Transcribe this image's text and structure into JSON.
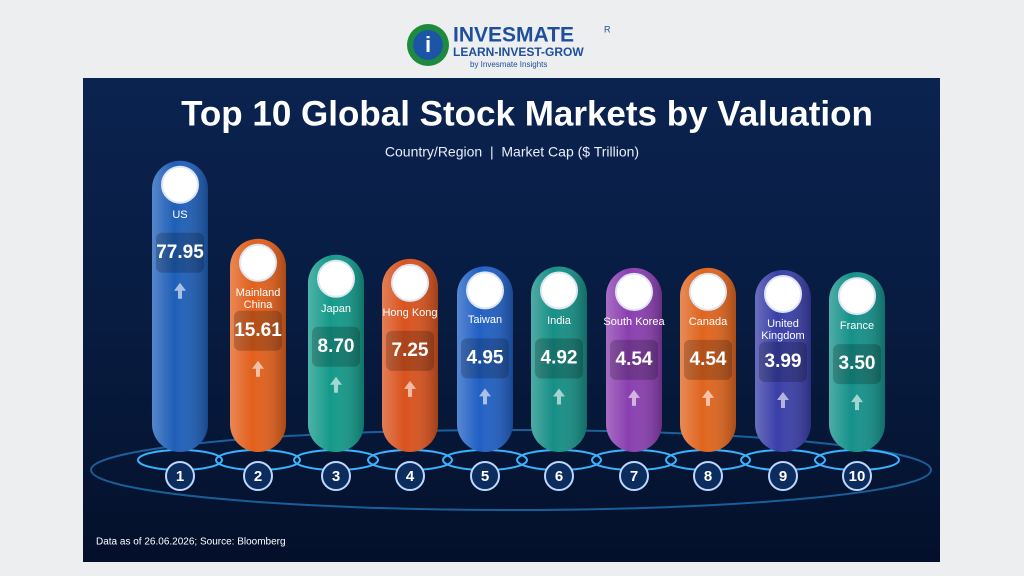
{
  "header": {
    "brand": "INVESMATE",
    "registered": "R",
    "tagline": "LEARN-INVEST-GROW",
    "byline": "by Invesmate Insights"
  },
  "chart_data": {
    "type": "bar",
    "title": "Top 10 Global Stock Markets by Valuation",
    "subtitle": "Country/Region  |  Market Cap ($ Trillion)",
    "categories": [
      "US",
      "Mainland China",
      "Japan",
      "Hong Kong",
      "Taiwan",
      "India",
      "South Korea",
      "Canada",
      "United Kingdom",
      "France"
    ],
    "values": [
      77.95,
      15.61,
      8.7,
      7.25,
      4.95,
      4.92,
      4.54,
      4.54,
      3.99,
      3.5
    ],
    "value_labels": [
      "77.95",
      "15.61",
      "8.70",
      "7.25",
      "4.95",
      "4.92",
      "4.54",
      "4.54",
      "3.99",
      "3.50"
    ],
    "ranks": [
      1,
      2,
      3,
      4,
      5,
      6,
      7,
      8,
      9,
      10
    ],
    "colors": [
      "#1f5fb8",
      "#e2601c",
      "#149a8a",
      "#d9531e",
      "#2160c4",
      "#168f86",
      "#8a3fb0",
      "#e0651e",
      "#3a3fa8",
      "#15918a"
    ],
    "footnote": "Data as of 26.06.2026; Source: Bloomberg"
  }
}
